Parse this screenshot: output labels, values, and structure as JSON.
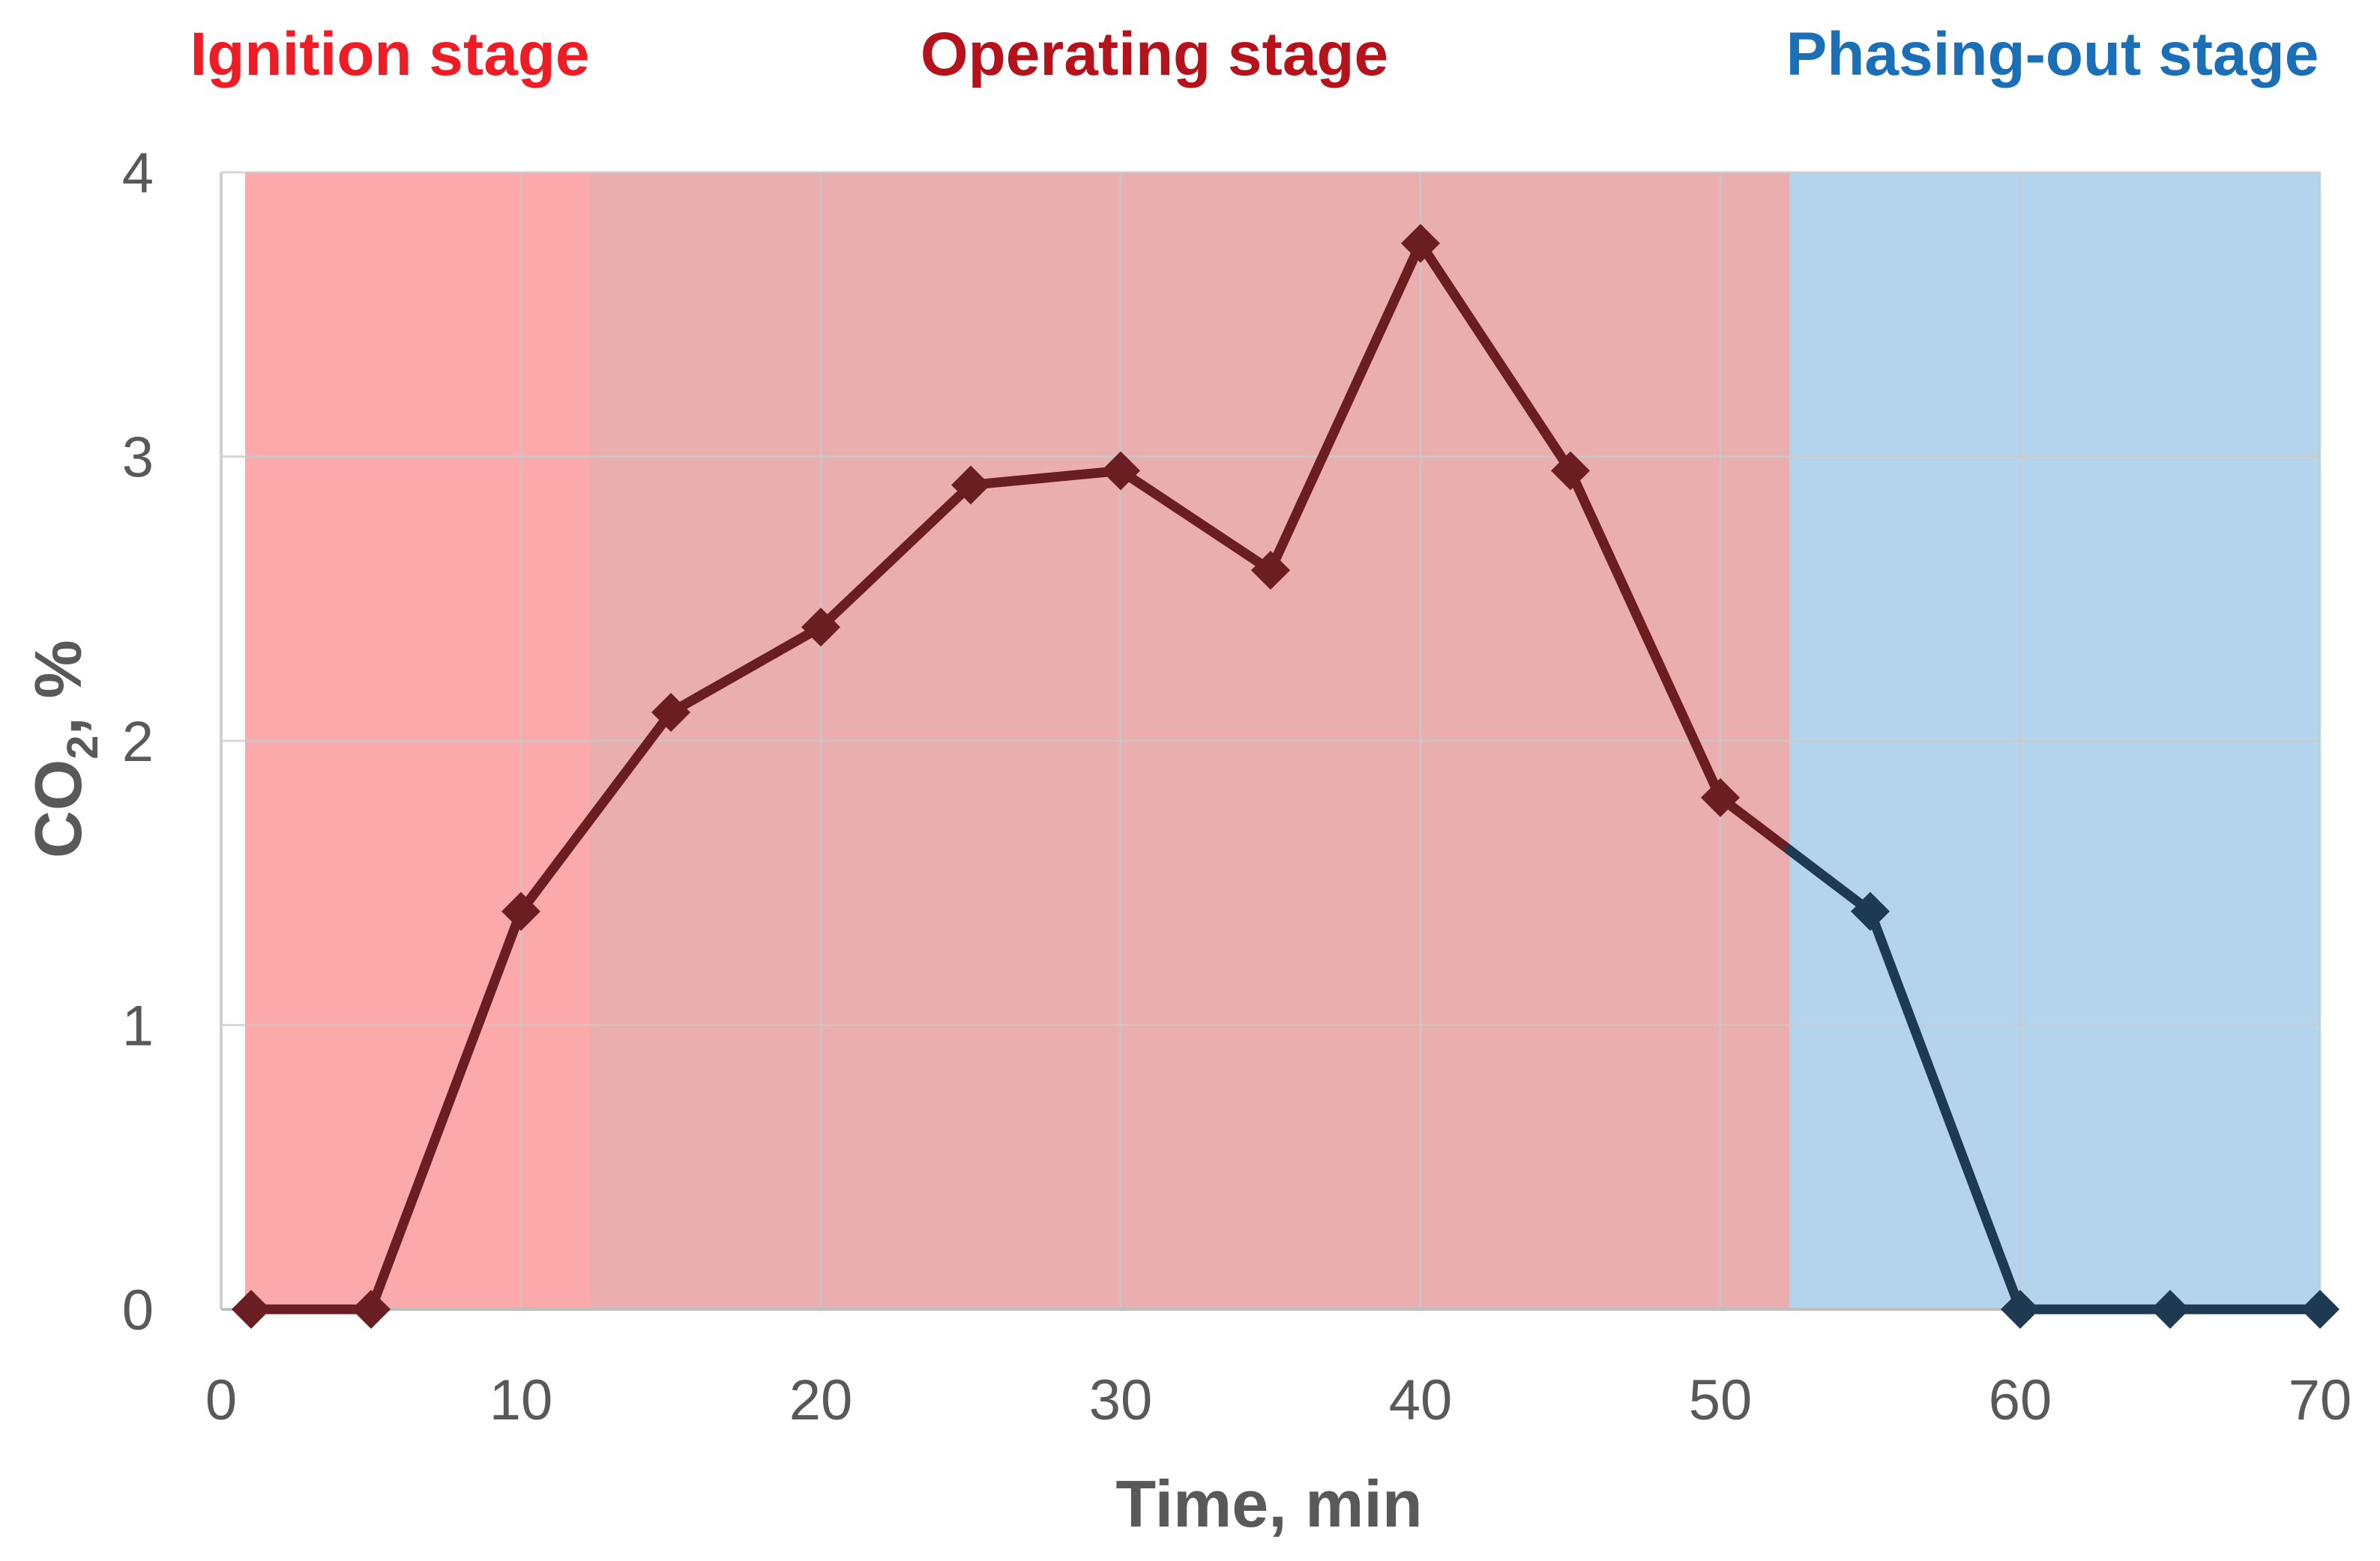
{
  "chart_data": {
    "type": "line",
    "xlabel": "Time, min",
    "ylabel_main": "CO",
    "ylabel_sub": "2",
    "ylabel_suffix": ", %",
    "xlim": [
      0,
      70
    ],
    "ylim": [
      0,
      4
    ],
    "x_ticks": [
      "0",
      "10",
      "20",
      "30",
      "40",
      "50",
      "60",
      "70"
    ],
    "y_ticks": [
      "0",
      "1",
      "2",
      "3",
      "4"
    ],
    "grid": true,
    "x": [
      1,
      5,
      10,
      15,
      20,
      25,
      30,
      35,
      40,
      45,
      50,
      55,
      60,
      65,
      70
    ],
    "values": [
      0,
      0,
      1.4,
      2.1,
      2.4,
      2.9,
      2.95,
      2.6,
      3.75,
      2.95,
      1.8,
      1.4,
      0,
      0,
      0
    ],
    "stages": [
      {
        "label": "Ignition stage",
        "x_start": 0.8,
        "x_end": 12.3,
        "fill": "#fca9ab",
        "label_color": "#ee1c25"
      },
      {
        "label": "Operating stage",
        "x_start": 12.3,
        "x_end": 52.3,
        "fill": "#eaaeae",
        "label_color": "#b5121b"
      },
      {
        "label": "Phasing-out stage",
        "x_start": 52.3,
        "x_end": 70,
        "fill": "#b4d3ec",
        "label_color": "#1a6fb7"
      }
    ],
    "line_color_hot": "#6b1e22",
    "line_color_cool": "#1d3a52",
    "grid_color": "#c9c9c9"
  }
}
